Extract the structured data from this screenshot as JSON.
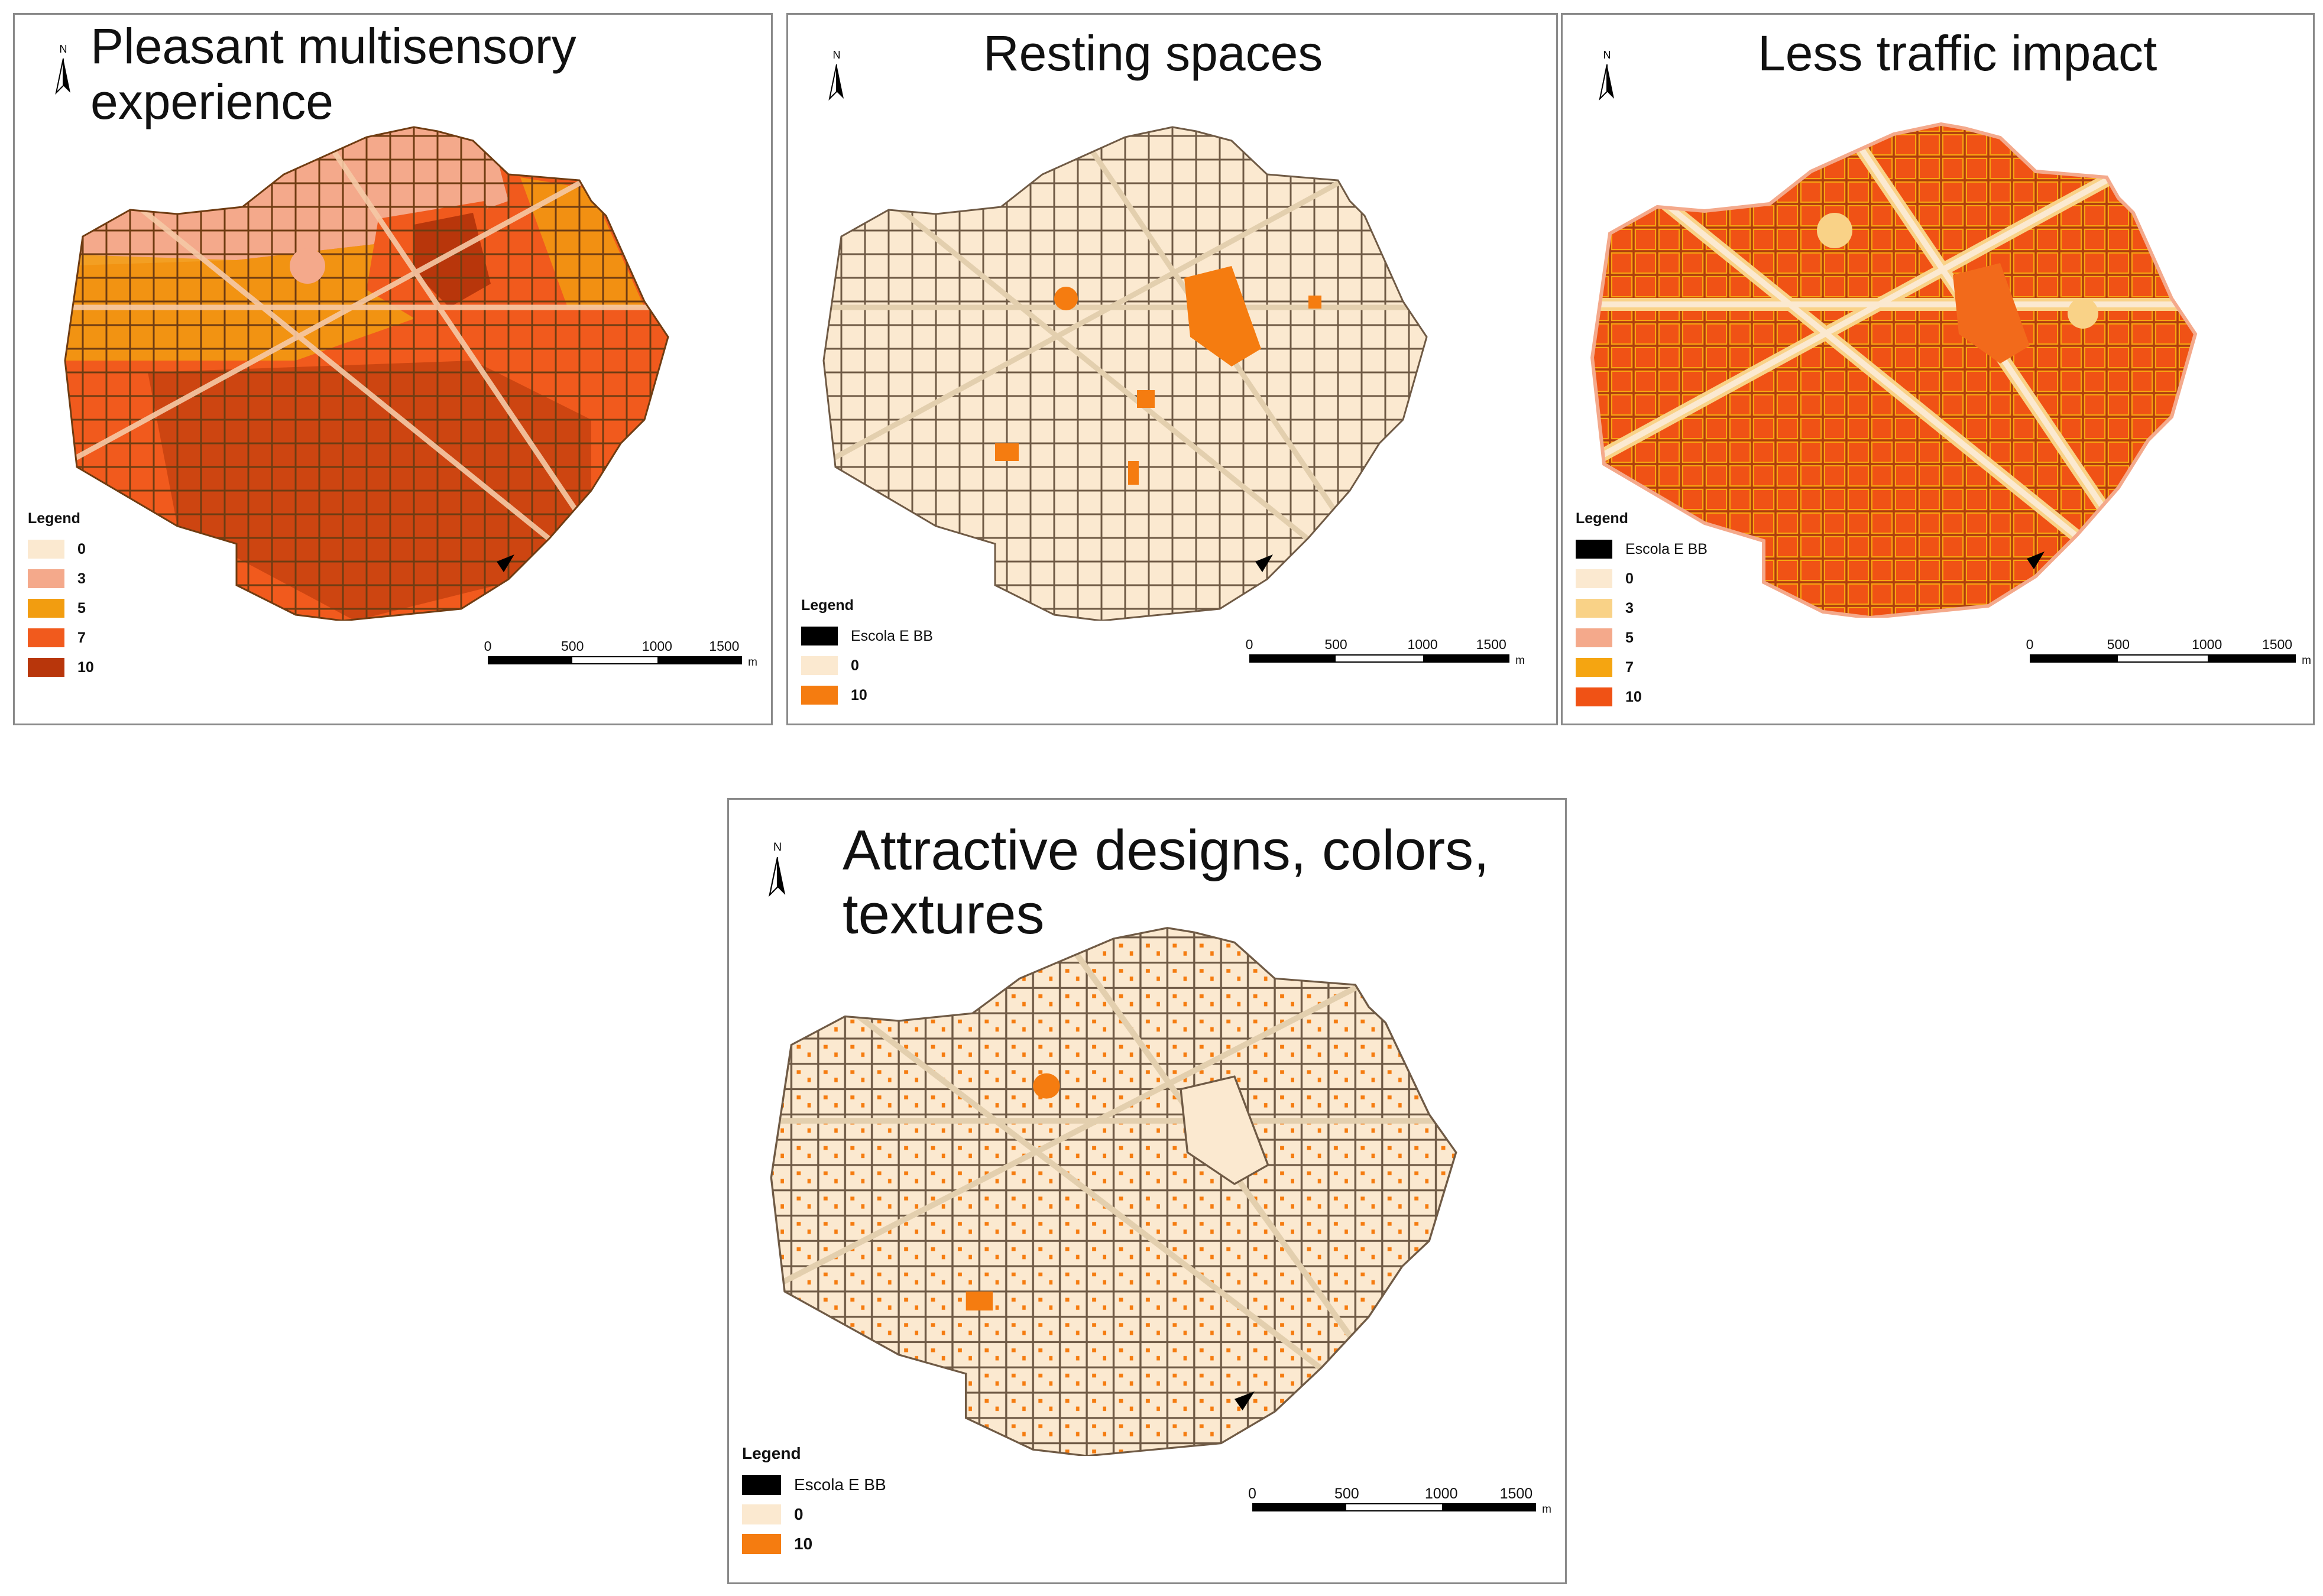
{
  "legend_title": "Legend",
  "school_label": "Escola E BB",
  "north_label": "N",
  "scale": {
    "ticks": [
      "0",
      "500",
      "1000",
      "1500"
    ],
    "unit": "m"
  },
  "colors": {
    "school": "#000000",
    "road": "#e3cfae",
    "road_edge": "#6f5a45",
    "border": "#8a8a8a"
  },
  "panels": [
    {
      "id": "multisensory",
      "title_lines": [
        "Pleasant multisensory",
        "experience"
      ],
      "legend": [
        {
          "label": "0",
          "color": "#fbe9d0"
        },
        {
          "label": "3",
          "color": "#f4a98b"
        },
        {
          "label": "5",
          "color": "#f29d10"
        },
        {
          "label": "7",
          "color": "#f15a1d"
        },
        {
          "label": "10",
          "color": "#b8360b"
        }
      ],
      "school_first": false
    },
    {
      "id": "resting",
      "title_lines": [
        "Resting spaces"
      ],
      "legend": [
        {
          "label": "0",
          "color": "#fbe9d0"
        },
        {
          "label": "10",
          "color": "#f57c10"
        }
      ],
      "school_first": true
    },
    {
      "id": "traffic",
      "title_lines": [
        "Less traffic impact"
      ],
      "legend": [
        {
          "label": "0",
          "color": "#fbe9d0"
        },
        {
          "label": "3",
          "color": "#f9d287"
        },
        {
          "label": "5",
          "color": "#f4a98b"
        },
        {
          "label": "7",
          "color": "#f5a511"
        },
        {
          "label": "10",
          "color": "#f05215"
        }
      ],
      "school_first": true
    },
    {
      "id": "attractive",
      "title_lines": [
        "Attractive designs, colors,",
        "textures"
      ],
      "legend": [
        {
          "label": "0",
          "color": "#fbe9d0"
        },
        {
          "label": "10",
          "color": "#f57c10"
        }
      ],
      "school_first": true
    }
  ]
}
